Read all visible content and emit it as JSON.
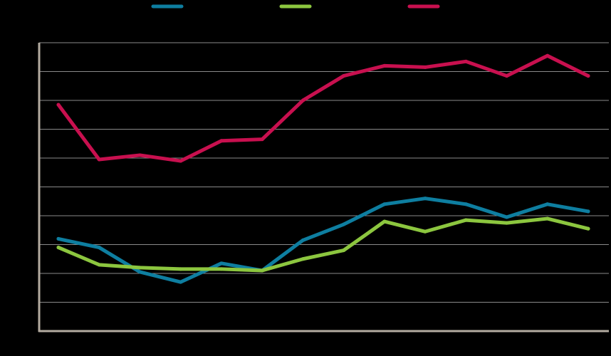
{
  "chart_data": {
    "type": "line",
    "title": "",
    "xlabel": "",
    "ylabel": "",
    "x": [
      1,
      2,
      3,
      4,
      5,
      6,
      7,
      8,
      9,
      10,
      11,
      12,
      13,
      14
    ],
    "ylim": [
      0,
      10
    ],
    "grid": true,
    "legend": "top",
    "series": [
      {
        "name": "",
        "color": "#0e7ea0",
        "values": [
          3.2,
          2.9,
          2.05,
          1.7,
          2.35,
          2.1,
          3.15,
          3.7,
          4.4,
          4.6,
          4.4,
          3.95,
          4.4,
          4.15
        ]
      },
      {
        "name": "",
        "color": "#8cc63f",
        "values": [
          2.9,
          2.3,
          2.2,
          2.15,
          2.15,
          2.1,
          2.5,
          2.8,
          3.8,
          3.45,
          3.85,
          3.75,
          3.9,
          3.55
        ]
      },
      {
        "name": "",
        "color": "#c8104f",
        "values": [
          7.85,
          5.95,
          6.1,
          5.9,
          6.6,
          6.65,
          8.0,
          8.85,
          9.2,
          9.15,
          9.35,
          8.85,
          9.55,
          8.85
        ]
      }
    ]
  }
}
